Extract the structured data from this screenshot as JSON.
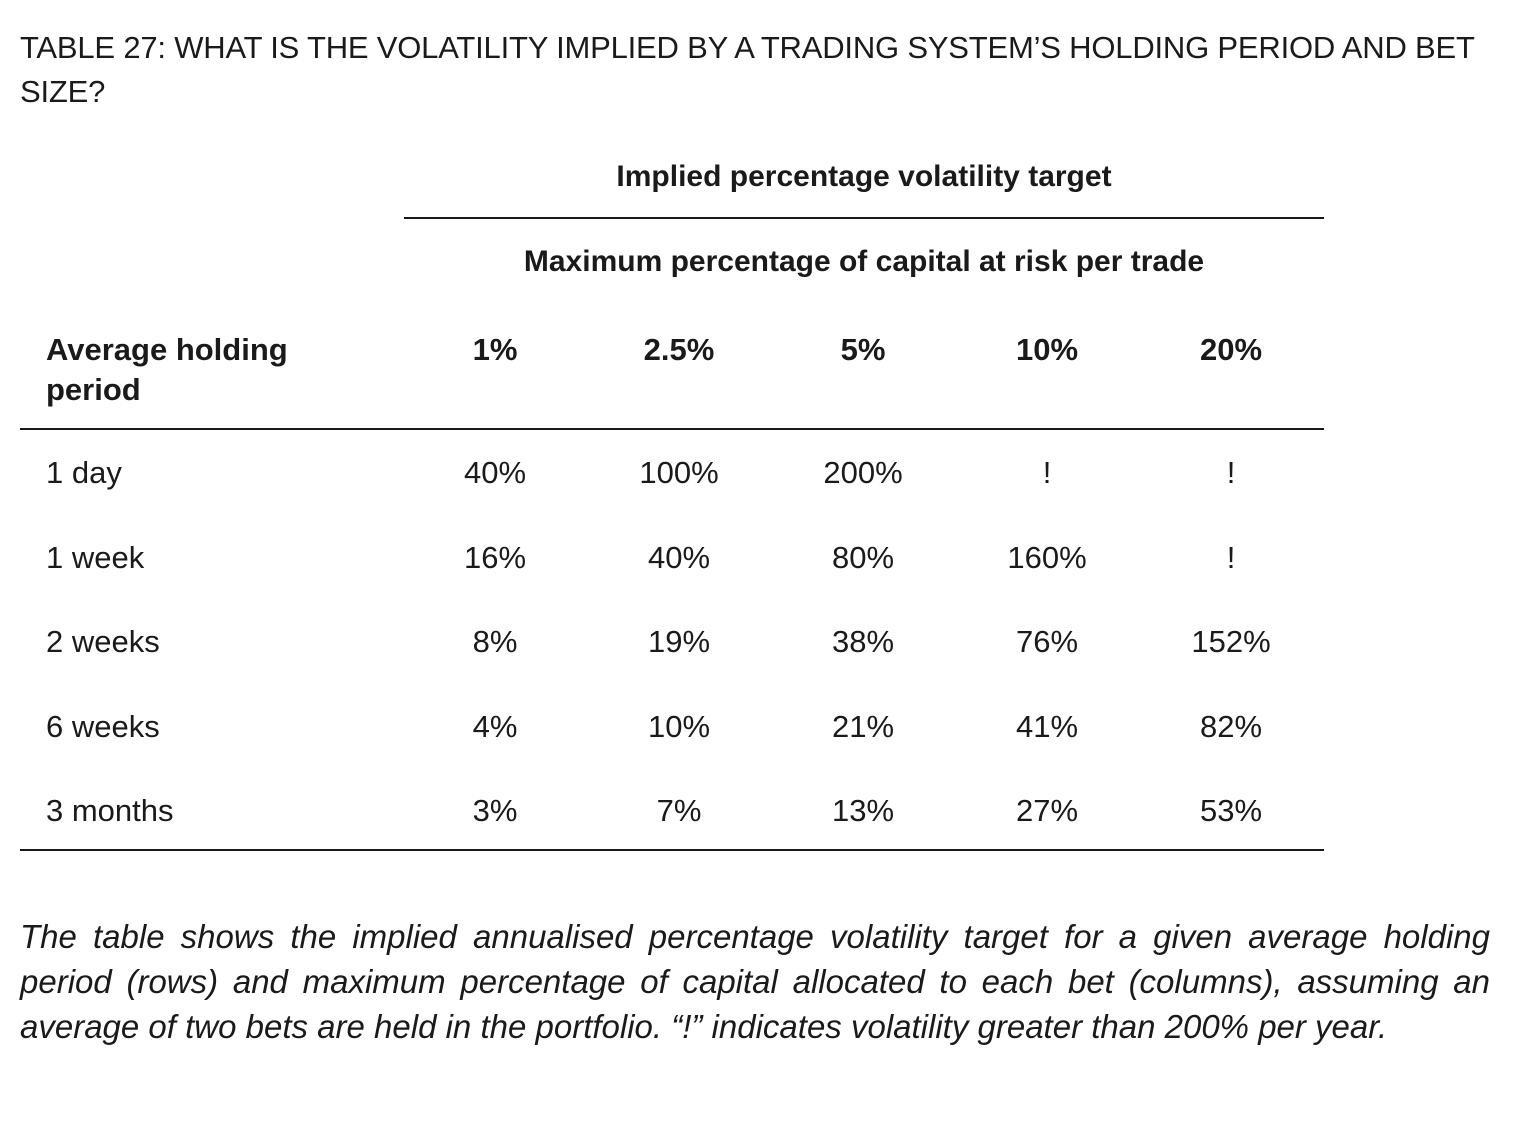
{
  "title": "TABLE 27: WHAT IS THE VOLATILITY IMPLIED BY A TRADING SYSTEM’S HOLDING PERIOD AND BET SIZE?",
  "table": {
    "super_header": "Implied percentage volatility target",
    "sub_header": "Maximum percentage of capital at risk per trade",
    "row_header": "Average holding period",
    "columns": [
      "1%",
      "2.5%",
      "5%",
      "10%",
      "20%"
    ],
    "rows": [
      {
        "label": "1 day",
        "values": [
          "40%",
          "100%",
          "200%",
          "!",
          "!"
        ]
      },
      {
        "label": "1 week",
        "values": [
          "16%",
          "40%",
          "80%",
          "160%",
          "!"
        ]
      },
      {
        "label": "2 weeks",
        "values": [
          "8%",
          "19%",
          "38%",
          "76%",
          "152%"
        ]
      },
      {
        "label": "6 weeks",
        "values": [
          "4%",
          "10%",
          "21%",
          "41%",
          "82%"
        ]
      },
      {
        "label": "3 months",
        "values": [
          "3%",
          "7%",
          "13%",
          "27%",
          "53%"
        ]
      }
    ]
  },
  "caption": "The table shows the implied annualised percentage volatility target for a given average holding period (rows) and maximum percentage of capital allocated to each bet (columns), assuming an average of two bets are held in the portfolio. “!” indicates volatility greater than 200% per year."
}
